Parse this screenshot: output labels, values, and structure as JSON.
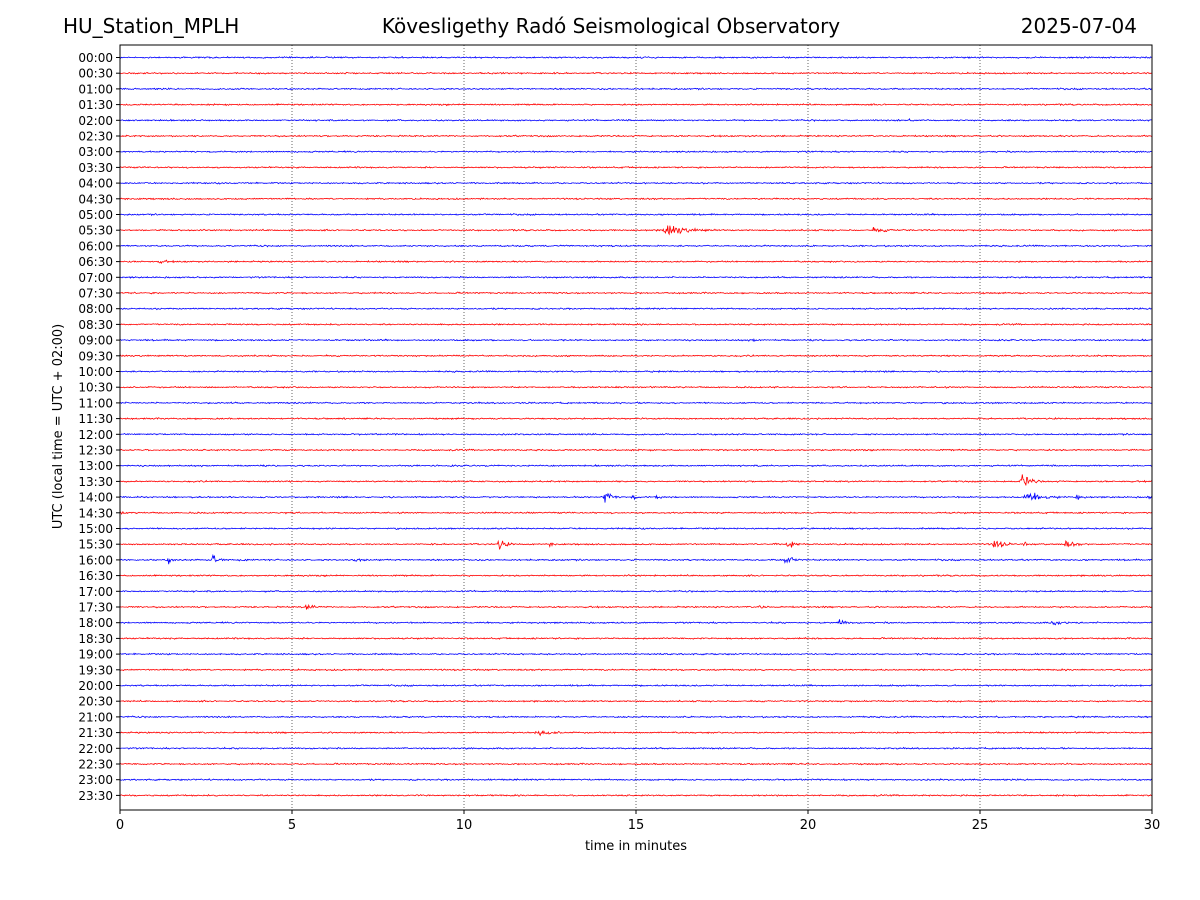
{
  "header": {
    "station": "HU_Station_MPLH",
    "observatory": "Kövesligethy Radó Seismological Observatory",
    "date": "2025-07-04"
  },
  "chart_data": {
    "type": "line",
    "title": "Kövesligethy Radó Seismological Observatory",
    "xlabel": "time in minutes",
    "ylabel": "UTC (local time = UTC + 02:00)",
    "xlim": [
      0,
      30
    ],
    "xticks": [
      0,
      5,
      10,
      15,
      20,
      25,
      30
    ],
    "grid": "vertical dotted lines at x ticks",
    "colors": {
      "even_rows": "#0000ff",
      "odd_rows": "#ff0000"
    },
    "rows": [
      "00:00",
      "00:30",
      "01:00",
      "01:30",
      "02:00",
      "02:30",
      "03:00",
      "03:30",
      "04:00",
      "04:30",
      "05:00",
      "05:30",
      "06:00",
      "06:30",
      "07:00",
      "07:30",
      "08:00",
      "08:30",
      "09:00",
      "09:30",
      "10:00",
      "10:30",
      "11:00",
      "11:30",
      "12:00",
      "12:30",
      "13:00",
      "13:30",
      "14:00",
      "14:30",
      "15:00",
      "15:30",
      "16:00",
      "16:30",
      "17:00",
      "17:30",
      "18:00",
      "18:30",
      "19:00",
      "19:30",
      "20:00",
      "20:30",
      "21:00",
      "21:30",
      "22:00",
      "22:30",
      "23:00",
      "23:30"
    ],
    "events": [
      {
        "row": "02:00",
        "minute": 22.9,
        "amplitude": 0.4,
        "duration_min": 0.3
      },
      {
        "row": "05:30",
        "minute": 15.8,
        "amplitude": 1.6,
        "duration_min": 1.5
      },
      {
        "row": "05:30",
        "minute": 21.9,
        "amplitude": 0.45,
        "duration_min": 1.2
      },
      {
        "row": "06:30",
        "minute": 1.1,
        "amplitude": 0.35,
        "duration_min": 0.5
      },
      {
        "row": "09:00",
        "minute": 18.4,
        "amplitude": 0.3,
        "duration_min": 0.3
      },
      {
        "row": "13:30",
        "minute": 26.2,
        "amplitude": 2.2,
        "duration_min": 0.6
      },
      {
        "row": "14:00",
        "minute": 14.1,
        "amplitude": 2.4,
        "duration_min": 0.4
      },
      {
        "row": "14:00",
        "minute": 14.9,
        "amplitude": 0.8,
        "duration_min": 0.2
      },
      {
        "row": "14:00",
        "minute": 15.6,
        "amplitude": 0.6,
        "duration_min": 0.2
      },
      {
        "row": "14:00",
        "minute": 26.3,
        "amplitude": 2.2,
        "duration_min": 1.0
      },
      {
        "row": "14:00",
        "minute": 27.8,
        "amplitude": 0.8,
        "duration_min": 0.3
      },
      {
        "row": "14:00",
        "minute": 29.9,
        "amplitude": 0.8,
        "duration_min": 0.1
      },
      {
        "row": "14:30",
        "minute": 0.05,
        "amplitude": 0.35,
        "duration_min": 0.2
      },
      {
        "row": "15:30",
        "minute": 11.0,
        "amplitude": 1.4,
        "duration_min": 0.5
      },
      {
        "row": "15:30",
        "minute": 12.5,
        "amplitude": 0.4,
        "duration_min": 0.3
      },
      {
        "row": "15:30",
        "minute": 19.0,
        "amplitude": 0.4,
        "duration_min": 0.3
      },
      {
        "row": "15:30",
        "minute": 19.4,
        "amplitude": 1.6,
        "duration_min": 0.4
      },
      {
        "row": "15:30",
        "minute": 25.4,
        "amplitude": 1.6,
        "duration_min": 0.6
      },
      {
        "row": "15:30",
        "minute": 26.3,
        "amplitude": 0.5,
        "duration_min": 0.2
      },
      {
        "row": "15:30",
        "minute": 27.5,
        "amplitude": 1.0,
        "duration_min": 0.5
      },
      {
        "row": "16:00",
        "minute": 1.4,
        "amplitude": 0.9,
        "duration_min": 0.3
      },
      {
        "row": "16:00",
        "minute": 2.7,
        "amplitude": 1.3,
        "duration_min": 0.4
      },
      {
        "row": "16:00",
        "minute": 3.5,
        "amplitude": 0.3,
        "duration_min": 0.3
      },
      {
        "row": "16:00",
        "minute": 6.8,
        "amplitude": 0.4,
        "duration_min": 0.8
      },
      {
        "row": "16:00",
        "minute": 19.3,
        "amplitude": 2.0,
        "duration_min": 0.5
      },
      {
        "row": "17:30",
        "minute": 5.4,
        "amplitude": 0.9,
        "duration_min": 0.5
      },
      {
        "row": "17:30",
        "minute": 18.6,
        "amplitude": 0.35,
        "duration_min": 0.4
      },
      {
        "row": "18:00",
        "minute": 10.4,
        "amplitude": 0.35,
        "duration_min": 0.4
      },
      {
        "row": "18:00",
        "minute": 20.9,
        "amplitude": 1.0,
        "duration_min": 0.4
      },
      {
        "row": "18:00",
        "minute": 27.1,
        "amplitude": 0.5,
        "duration_min": 0.8
      },
      {
        "row": "21:30",
        "minute": 12.1,
        "amplitude": 0.8,
        "duration_min": 1.0
      }
    ]
  }
}
